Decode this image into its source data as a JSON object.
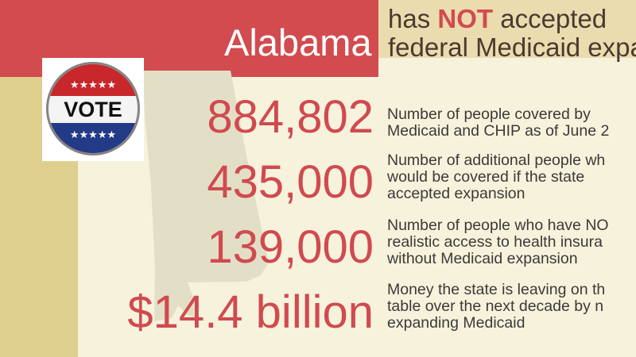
{
  "colors": {
    "header_red": "#d24b4f",
    "accent_red": "#d04a4f",
    "header_tan": "#eadcae",
    "background": "#f6f2dc",
    "left_band": "#dfcf8e",
    "text_dark": "#3b3a38"
  },
  "header": {
    "state": "Alabama",
    "headline_prefix": "has ",
    "headline_emphasis": "NOT",
    "headline_suffix": " accepted",
    "headline_line2": "federal Medicaid expan"
  },
  "vote_button": {
    "label": "VOTE",
    "stars_top": "★★★★★",
    "stars_bottom": "★★★★★"
  },
  "stats": [
    {
      "number": "884,802",
      "line1": "Number of people covered by",
      "line2": "Medicaid and CHIP as of June 2",
      "line3": ""
    },
    {
      "number": "435,000",
      "line1": "Number of additional people wh",
      "line2": "would be covered if the state",
      "line3": "accepted expansion"
    },
    {
      "number": "139,000",
      "line1": "Number of people who have NO",
      "line2": "realistic access to health insura",
      "line3": "without Medicaid expansion"
    },
    {
      "number": "$14.4 billion",
      "line1": "Money the state is leaving on th",
      "line2": "table over the next decade by n",
      "line3": "expanding Medicaid"
    }
  ]
}
